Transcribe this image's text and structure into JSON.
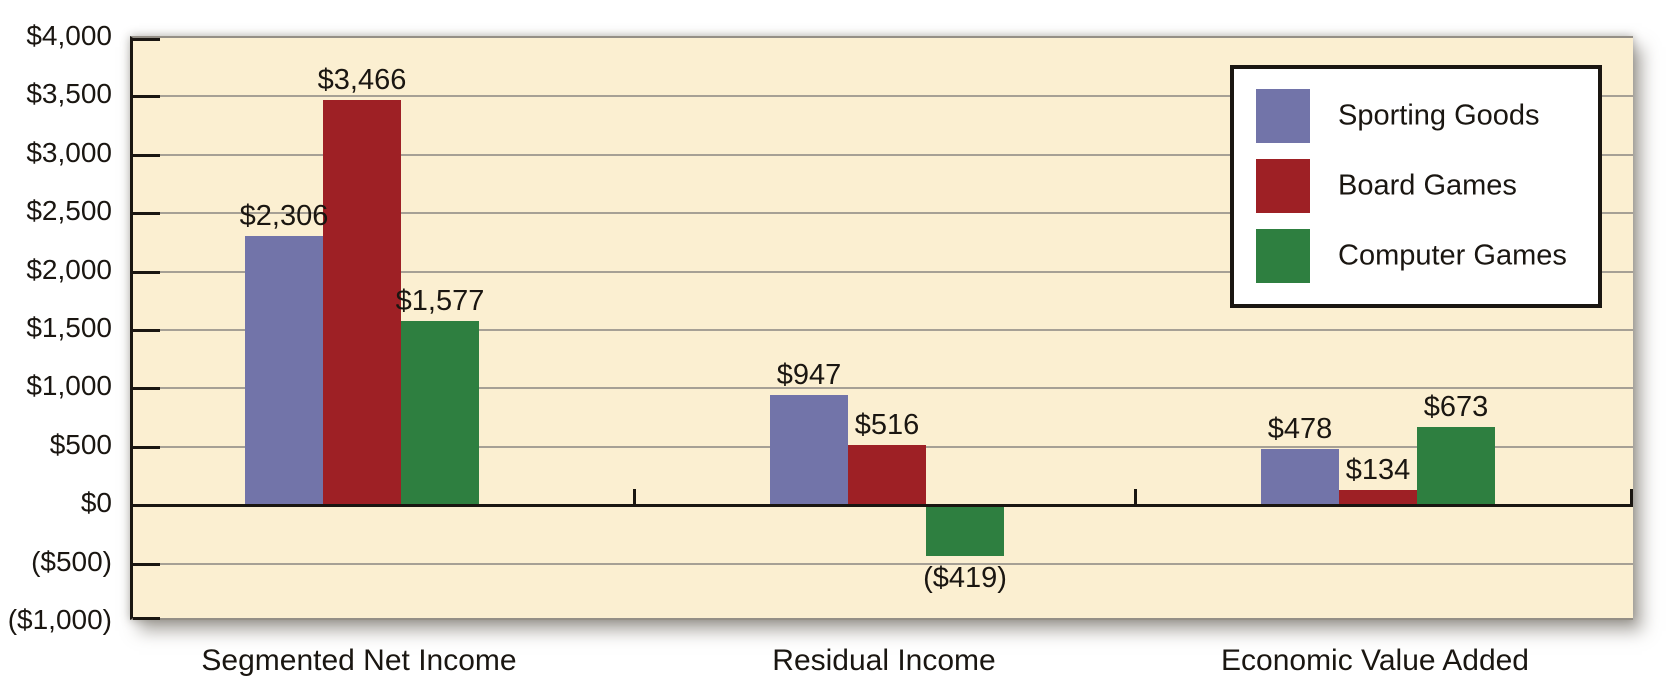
{
  "chart_data": {
    "type": "bar",
    "title": "",
    "categories": [
      "Segmented Net Income",
      "Residual Income",
      "Economic Value Added"
    ],
    "series": [
      {
        "name": "Sporting Goods",
        "color": "#7274a9",
        "values": [
          2306,
          947,
          478
        ],
        "labels": [
          "$2,306",
          "$947",
          "$478"
        ]
      },
      {
        "name": "Board Games",
        "color": "#9e2025",
        "values": [
          3466,
          516,
          134
        ],
        "labels": [
          "$3,466",
          "$516",
          "$134"
        ]
      },
      {
        "name": "Computer Games",
        "color": "#2e7f40",
        "values": [
          1577,
          -419,
          673
        ],
        "labels": [
          "$1,577",
          "($419)",
          "$673"
        ]
      }
    ],
    "y_axis": {
      "min": -1000,
      "max": 4000,
      "step": 500,
      "tick_labels": [
        "$4,000",
        "$3,500",
        "$3,000",
        "$2,500",
        "$2,000",
        "$1,500",
        "$1,000",
        "$500",
        "$0",
        "($500)",
        "($1,000)"
      ]
    },
    "xlabel": "",
    "ylabel": "",
    "grid": true,
    "legend": {
      "position": "top-right",
      "entries": [
        "Sporting Goods",
        "Board Games",
        "Computer Games"
      ]
    },
    "colors": {
      "plot_background": "#fbefd1",
      "gridline": "#a6a095",
      "axis": "#1a1611",
      "text": "#1a1611",
      "legend_background": "#ffffff"
    }
  }
}
